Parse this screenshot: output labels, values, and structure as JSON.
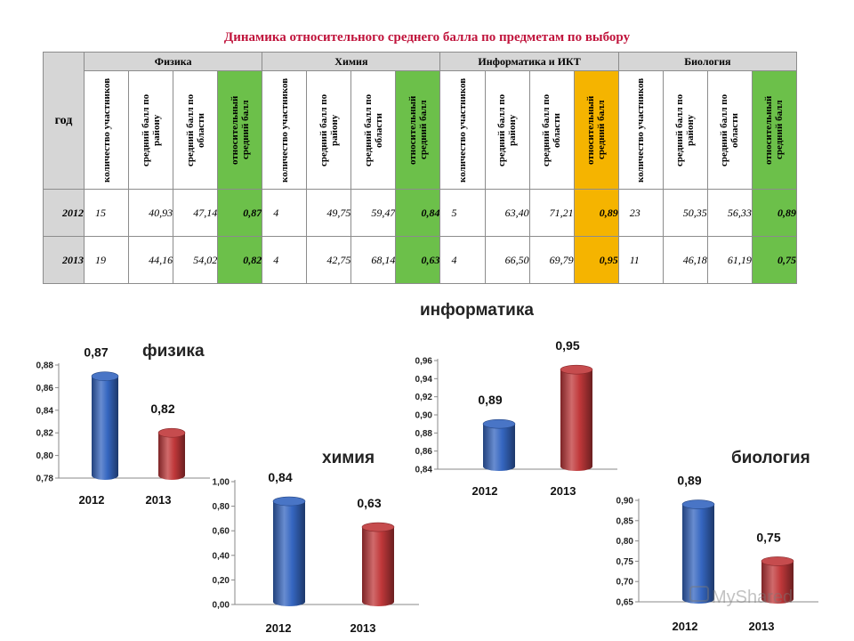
{
  "page": {
    "title": "Динамика относительного среднего балла по предметам по выбору"
  },
  "table": {
    "year_header": "год",
    "subjects": [
      "Физика",
      "Химия",
      "Информатика и ИКТ",
      "Биология"
    ],
    "columns": [
      "количество участников",
      "средний балл по району",
      "средний балл по области",
      "относительный средний балл"
    ],
    "rows": [
      {
        "year": "2012",
        "subjects": [
          [
            "15",
            "40,93",
            "47,14",
            "0,87"
          ],
          [
            "4",
            "49,75",
            "59,47",
            "0,84"
          ],
          [
            "5",
            "63,40",
            "71,21",
            "0,89"
          ],
          [
            "23",
            "50,35",
            "56,33",
            "0,89"
          ]
        ]
      },
      {
        "year": "2013",
        "subjects": [
          [
            "19",
            "44,16",
            "54,02",
            "0,82"
          ],
          [
            "4",
            "42,75",
            "68,14",
            "0,63"
          ],
          [
            "4",
            "66,50",
            "69,79",
            "0,95"
          ],
          [
            "11",
            "46,18",
            "61,19",
            "0,75"
          ]
        ]
      }
    ],
    "colors": {
      "relative": "#6cc04a",
      "relative_highlight": "#f5b400",
      "header": "#d6d6d6"
    }
  },
  "chart_data": [
    {
      "type": "bar",
      "title": "физика",
      "categories": [
        "2012",
        "2013"
      ],
      "values": [
        0.87,
        0.82
      ],
      "value_labels": [
        "0,87",
        "0,82"
      ],
      "ylim": [
        0.78,
        0.88
      ],
      "yticks": [
        "0,78",
        "0,80",
        "0,82",
        "0,84",
        "0,86",
        "0,88"
      ],
      "colors": [
        "#3566c0",
        "#c0383a"
      ]
    },
    {
      "type": "bar",
      "title": "химия",
      "categories": [
        "2012",
        "2013"
      ],
      "values": [
        0.84,
        0.63
      ],
      "value_labels": [
        "0,84",
        "0,63"
      ],
      "ylim": [
        0,
        1.0
      ],
      "yticks": [
        "0,00",
        "0,20",
        "0,40",
        "0,60",
        "0,80",
        "1,00"
      ],
      "colors": [
        "#3566c0",
        "#c0383a"
      ]
    },
    {
      "type": "bar",
      "title": "информатика",
      "categories": [
        "2012",
        "2013"
      ],
      "values": [
        0.89,
        0.95
      ],
      "value_labels": [
        "0,89",
        "0,95"
      ],
      "ylim": [
        0.84,
        0.96
      ],
      "yticks": [
        "0,84",
        "0,86",
        "0,88",
        "0,90",
        "0,92",
        "0,94",
        "0,96"
      ],
      "colors": [
        "#3566c0",
        "#c0383a"
      ]
    },
    {
      "type": "bar",
      "title": "биология",
      "categories": [
        "2012",
        "2013"
      ],
      "values": [
        0.89,
        0.75
      ],
      "value_labels": [
        "0,89",
        "0,75"
      ],
      "ylim": [
        0.65,
        0.9
      ],
      "yticks": [
        "0,65",
        "0,70",
        "0,75",
        "0,80",
        "0,85",
        "0,90"
      ],
      "colors": [
        "#3566c0",
        "#c0383a"
      ]
    }
  ],
  "watermark": {
    "text": "MyShared"
  }
}
